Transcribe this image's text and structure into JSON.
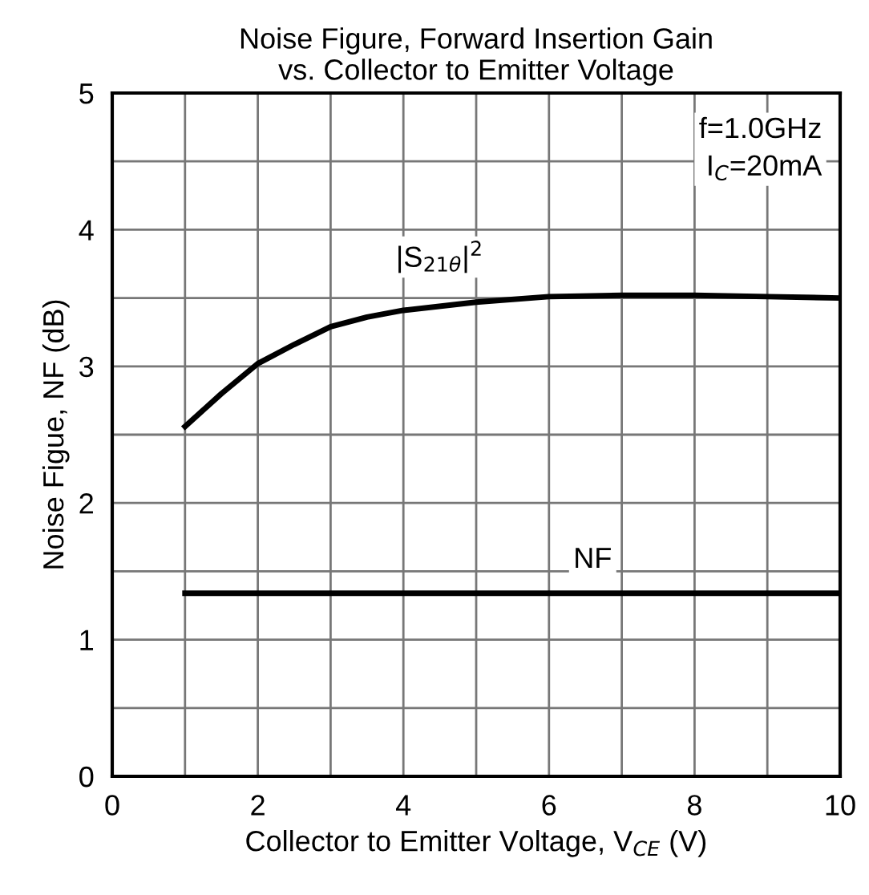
{
  "chart_data": {
    "type": "line",
    "title": "Noise Figure, Forward Insertion Gain\nvs. Collector to Emitter Voltage",
    "xlabel": "Collector to Emitter Voltage, V$_{CE}$ (V)",
    "ylabel": "Noise Figue, NF (dB)",
    "x": [
      1,
      1.5,
      2,
      2.5,
      3,
      3.5,
      4,
      5,
      6,
      7,
      8,
      9,
      10
    ],
    "series": [
      {
        "name": "|S$_{21θ}$|$^{2}$",
        "color": "#000000",
        "values": [
          2.56,
          2.8,
          3.02,
          3.16,
          3.29,
          3.36,
          3.41,
          3.47,
          3.51,
          3.52,
          3.52,
          3.51,
          3.5
        ]
      },
      {
        "name": "NF",
        "color": "#000000",
        "values": [
          1.34,
          1.34,
          1.34,
          1.34,
          1.34,
          1.34,
          1.34,
          1.34,
          1.34,
          1.34,
          1.34,
          1.34,
          1.34
        ]
      }
    ],
    "annotations": [
      "f=1.0GHz\nI$_{C}$=20mA"
    ],
    "xlim": [
      0,
      10
    ],
    "ylim": [
      0,
      5
    ],
    "xticks": [
      0,
      2,
      4,
      6,
      8,
      10
    ],
    "yticks": [
      0,
      1,
      2,
      3,
      4,
      5
    ],
    "grid": true,
    "legend": false,
    "marker": "none",
    "line_style": "solid"
  }
}
